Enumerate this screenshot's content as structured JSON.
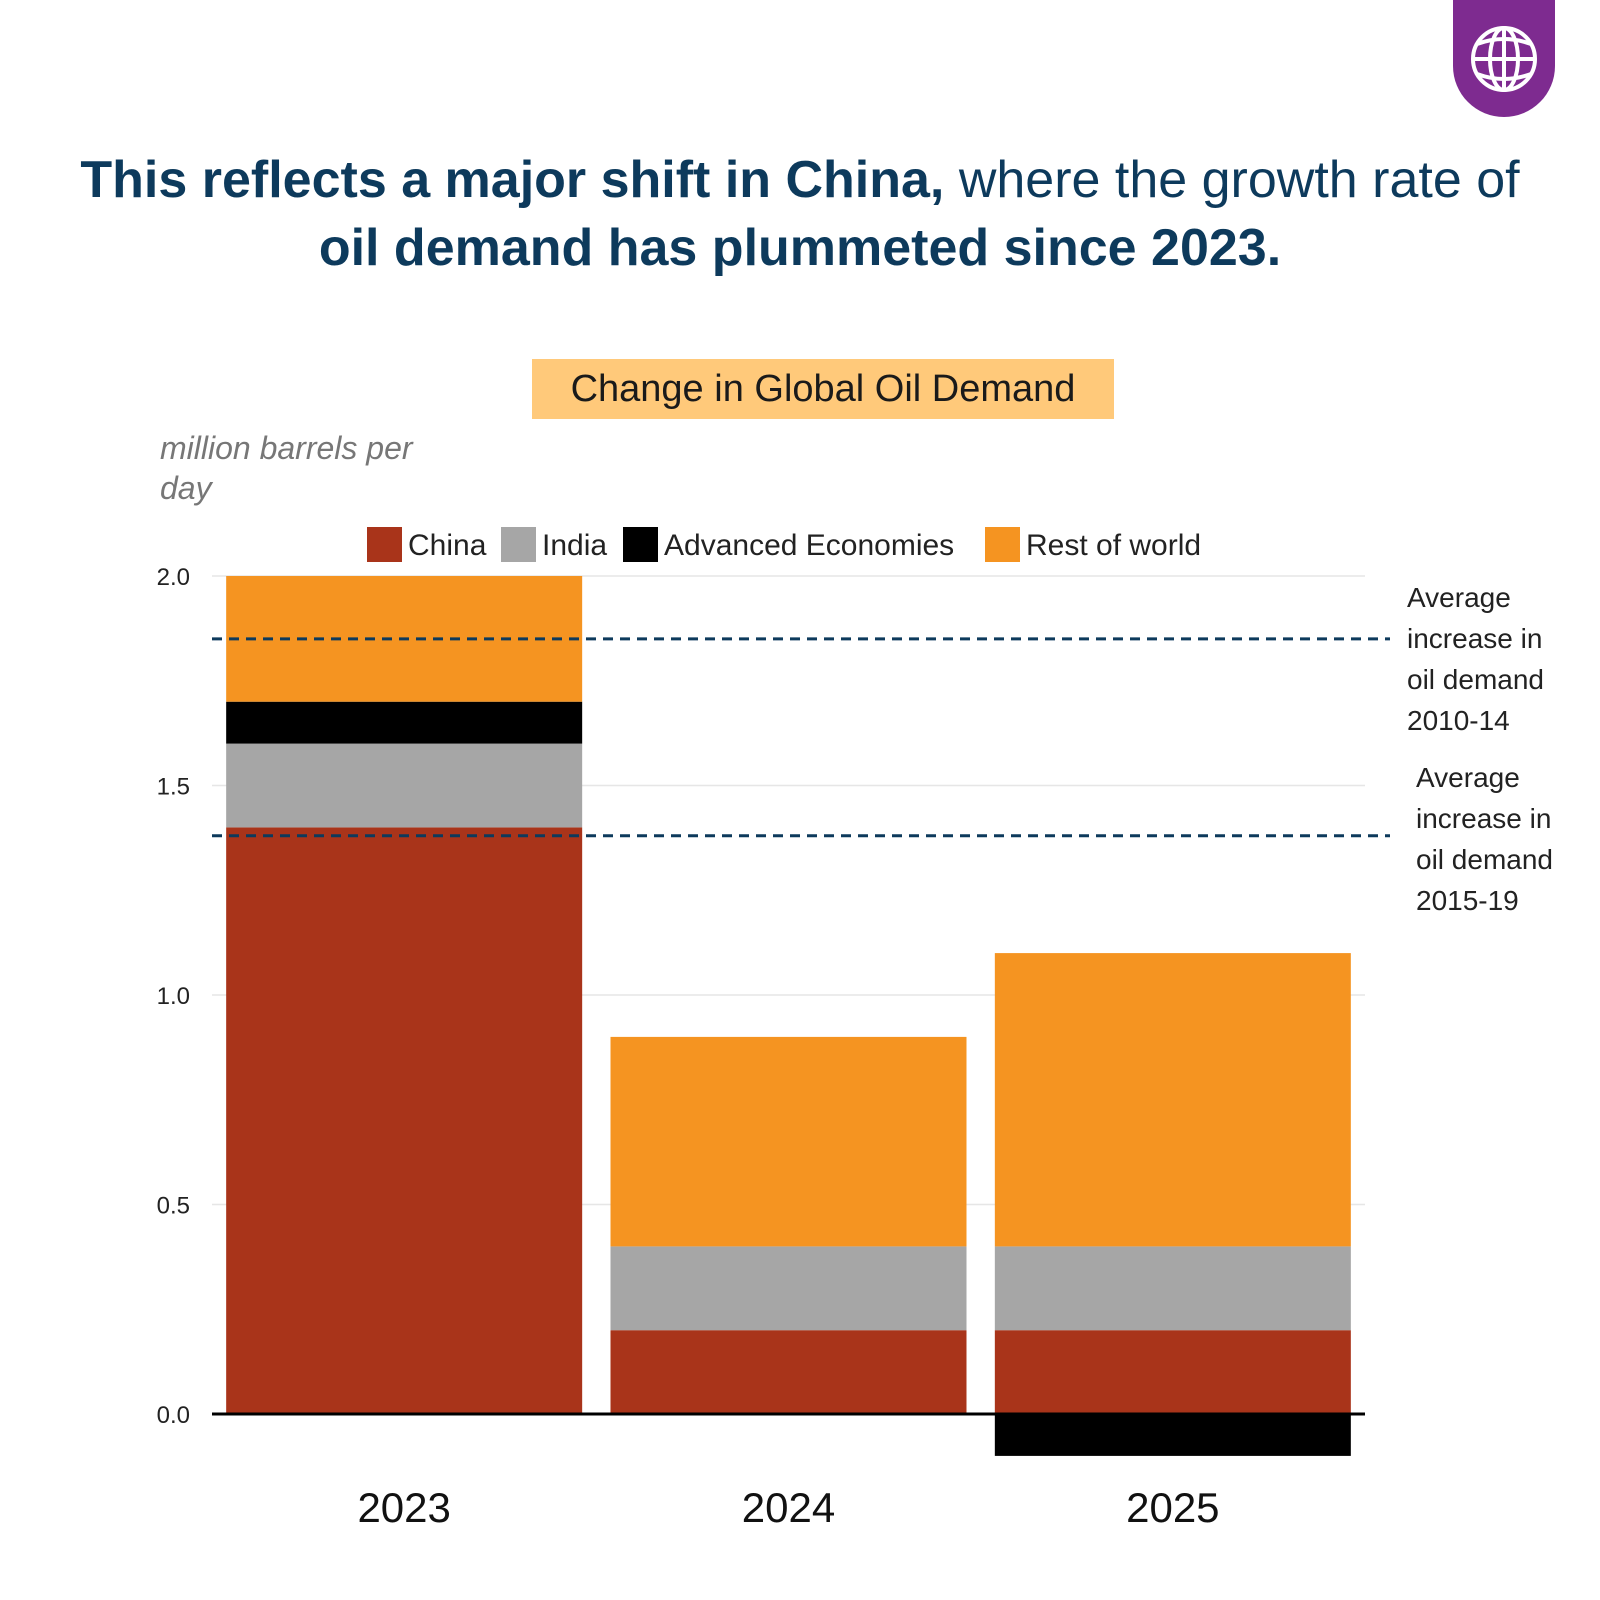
{
  "headline": {
    "part1": "This reflects a major shift in China,",
    "part2": " where the growth rate of ",
    "part3": "oil demand has plummeted since 2023",
    "part4": "."
  },
  "logo": {
    "icon": "globe-icon",
    "color": "#7e2b90"
  },
  "chart_data": {
    "type": "bar",
    "stacked": true,
    "title": "Change in Global Oil Demand",
    "ylabel": "million barrels per day",
    "xlabel": "",
    "categories": [
      "2023",
      "2024",
      "2025"
    ],
    "series": [
      {
        "name": "China",
        "color": "#a9341a",
        "values": [
          1.4,
          0.2,
          0.2
        ]
      },
      {
        "name": "India",
        "color": "#a6a6a6",
        "values": [
          0.2,
          0.2,
          0.2
        ]
      },
      {
        "name": "Advanced Economies",
        "color": "#000000",
        "values": [
          0.1,
          0.0,
          -0.1
        ]
      },
      {
        "name": "Rest of world",
        "color": "#f59421",
        "values": [
          0.3,
          0.5,
          0.7
        ]
      }
    ],
    "ylim": [
      -0.1,
      2.0
    ],
    "yticks": [
      "0.0",
      "0.5",
      "1.0",
      "1.5",
      "2.0"
    ],
    "ytick_values": [
      0,
      0.5,
      1.0,
      1.5,
      2.0
    ],
    "grid": true,
    "legend_position": "top",
    "reference_lines": [
      {
        "value": 1.85,
        "label_lines": [
          "Average",
          "increase in",
          "oil demand",
          "2010-14"
        ]
      },
      {
        "value": 1.38,
        "label_lines": [
          "Average",
          "increase in",
          "oil demand",
          "2015-19"
        ]
      }
    ],
    "reference_line_color": "#0d3a5c"
  }
}
